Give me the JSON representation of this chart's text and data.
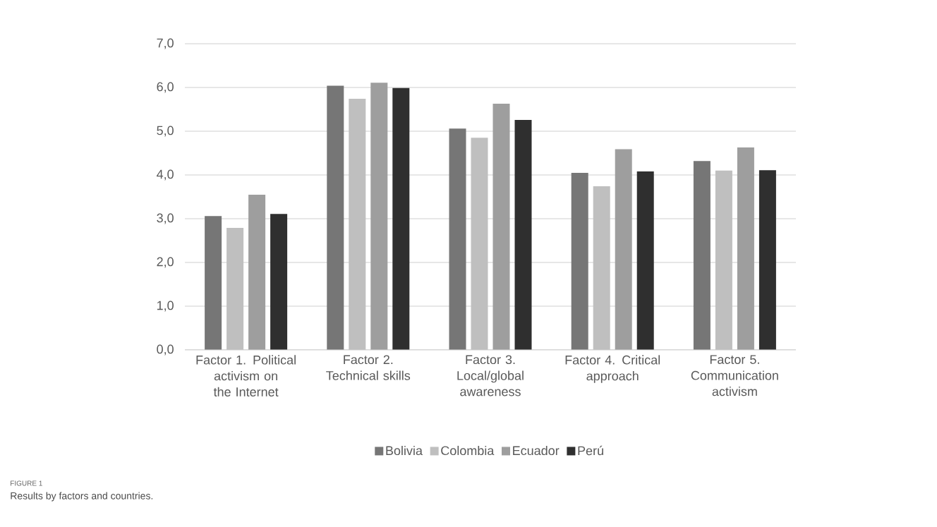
{
  "chart_data": {
    "type": "bar",
    "categories": [
      "Factor 1. Political activism on the Internet",
      "Factor 2. Technical skills",
      "Factor 3. Local/global awareness",
      "Factor 4. Critical approach",
      "Factor 5. Communication activism"
    ],
    "series": [
      {
        "name": "Bolivia",
        "color": "#767676",
        "values": [
          3.06,
          6.04,
          5.06,
          4.05,
          4.32
        ]
      },
      {
        "name": "Colombia",
        "color": "#bfbfbf",
        "values": [
          2.79,
          5.74,
          4.85,
          3.74,
          4.1
        ]
      },
      {
        "name": "Ecuador",
        "color": "#9e9e9e",
        "values": [
          3.55,
          6.11,
          5.63,
          4.59,
          4.63
        ]
      },
      {
        "name": "Perú",
        "color": "#2f2f2f",
        "values": [
          3.11,
          5.99,
          5.26,
          4.08,
          4.11
        ]
      }
    ],
    "ylim": [
      0,
      7
    ],
    "yticks": [
      {
        "value": 0,
        "label": "0,0"
      },
      {
        "value": 1,
        "label": "1,0"
      },
      {
        "value": 2,
        "label": "2,0"
      },
      {
        "value": 3,
        "label": "3,0"
      },
      {
        "value": 4,
        "label": "4,0"
      },
      {
        "value": 5,
        "label": "5,0"
      },
      {
        "value": 6,
        "label": "6,0"
      },
      {
        "value": 7,
        "label": "7,0"
      }
    ],
    "grid": "y",
    "legend": "bottom",
    "annotations": [
      "FIGURE 1",
      "Results by factors and countries."
    ]
  }
}
